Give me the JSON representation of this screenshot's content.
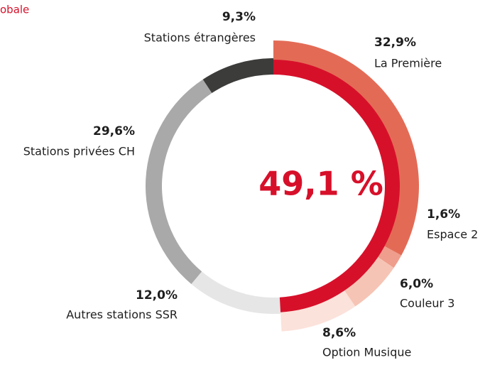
{
  "chart_data": {
    "type": "donut",
    "title": "obale",
    "categories": [
      "La Première",
      "Espace 2",
      "Couleur 3",
      "Option Musique",
      "Autres stations SSR",
      "Stations privées CH",
      "Stations étrangères"
    ],
    "values": [
      32.9,
      1.6,
      6.0,
      8.6,
      12.0,
      29.6,
      9.3
    ],
    "value_labels": [
      "32,9%",
      "1,6%",
      "6,0%",
      "8,6%",
      "12,0%",
      "29,6%",
      "9,3%"
    ],
    "colors": [
      "#e36b56",
      "#ef9d8c",
      "#f6c4b5",
      "#fbe2da",
      "#e6e6e6",
      "#a9a9a9",
      "#3c3c3b"
    ],
    "inner_arc": {
      "value": 49.1,
      "label": "49,1 %",
      "color": "#d7102a"
    }
  }
}
